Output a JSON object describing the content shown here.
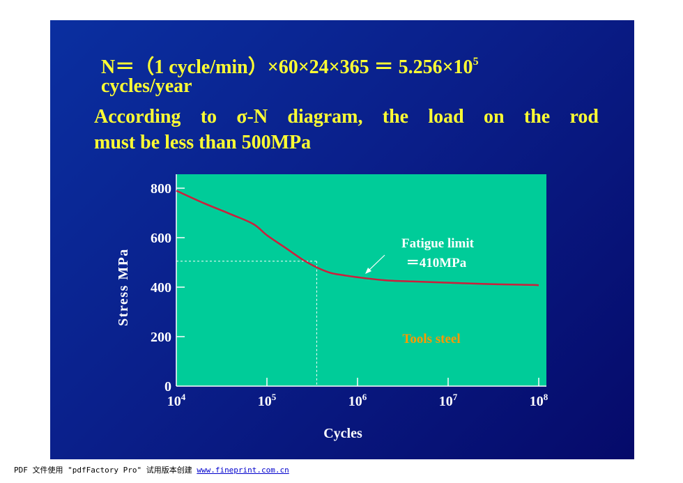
{
  "slide": {
    "equation_text": "N＝（1 cycle/min）×60×24×365 ＝ 5.256×10",
    "equation_exponent": "5",
    "equation_unit": "cycles/year",
    "statement_line1": "According to σ-N diagram, the load on the rod",
    "statement_line2": "must be less than 500MPa"
  },
  "chart_data": {
    "type": "line",
    "title": "",
    "xlabel": "Cycles",
    "ylabel": "Stress MPa",
    "x_scale": "log",
    "xlim": [
      4,
      8
    ],
    "ylim": [
      0,
      800
    ],
    "x_tick_labels": [
      {
        "base": "10",
        "exp": "4"
      },
      {
        "base": "10",
        "exp": "5"
      },
      {
        "base": "10",
        "exp": "6"
      },
      {
        "base": "10",
        "exp": "7"
      },
      {
        "base": "10",
        "exp": "8"
      }
    ],
    "y_tick_labels": [
      "0",
      "200",
      "400",
      "600",
      "800"
    ],
    "series": [
      {
        "color": "#cc1f3c",
        "log10_cycles": [
          4.0,
          4.3,
          4.6,
          4.85,
          5.0,
          5.2,
          5.4,
          5.55,
          5.7,
          5.85,
          6.0,
          6.3,
          6.6,
          7.0,
          7.4,
          7.8,
          8.0
        ],
        "stress": [
          790,
          740,
          695,
          655,
          610,
          560,
          510,
          480,
          458,
          448,
          440,
          428,
          423,
          418,
          413,
          410,
          408
        ]
      }
    ],
    "reference": {
      "log10_cycles": 5.55,
      "stress": 505
    },
    "annotation_label_1": "Fatigue limit",
    "annotation_label_2": "＝410MPa",
    "material_label": "Tools steel",
    "colors": {
      "plot_background": "#00cc99",
      "curve": "#cc1f3c",
      "material_label": "#ff9900",
      "text": "#ffffff",
      "heading": "#ffff33"
    }
  },
  "footer": {
    "text": "PDF 文件使用 \"pdfFactory Pro\" 试用版本创建 ",
    "link": "www.fineprint.com.cn"
  }
}
